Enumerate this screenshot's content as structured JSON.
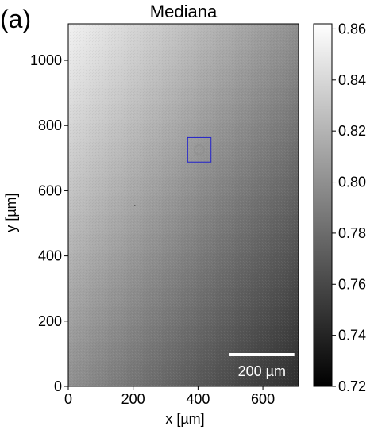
{
  "panel_label": "(a)",
  "chart_data": {
    "type": "heatmap",
    "title": "Mediana",
    "xlabel": "x [µm]",
    "ylabel": "y [µm]",
    "xlim": [
      0,
      710
    ],
    "ylim": [
      0,
      1112
    ],
    "xticks": [
      0,
      200,
      400,
      600
    ],
    "yticks": [
      0,
      200,
      400,
      600,
      800,
      1000
    ],
    "colormap": "gray",
    "colorbar": {
      "range": [
        0.72,
        0.862
      ],
      "ticks": [
        "0.72",
        "0.74",
        "0.76",
        "0.78",
        "0.80",
        "0.82",
        "0.84",
        "0.86"
      ]
    },
    "gradient": {
      "top_left_value": 0.855,
      "bottom_right_value": 0.745
    },
    "roi_box": {
      "x": [
        368,
        440
      ],
      "y": [
        688,
        763
      ],
      "color": "#2222cc"
    },
    "scale_bar": {
      "length": 200,
      "label": "200 µm",
      "color": "#ffffff"
    }
  }
}
